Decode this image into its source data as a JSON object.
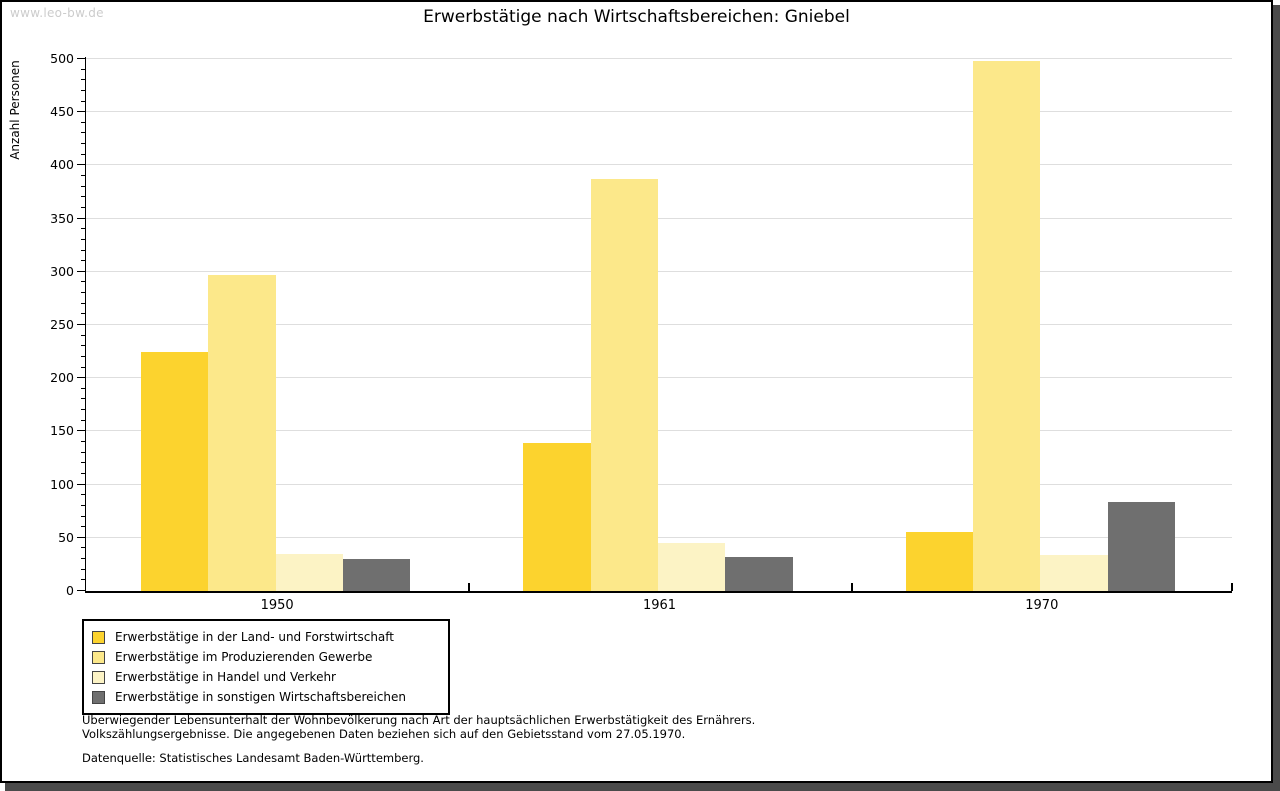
{
  "site": {
    "watermark": "www.leo-bw.de"
  },
  "title": "Erwerbstätige nach Wirtschaftsbereichen: Gniebel",
  "chart_data": {
    "type": "bar",
    "categories": [
      "1950",
      "1961",
      "1970"
    ],
    "series": [
      {
        "name": "Erwerbstätige in der Land- und Forstwirtschaft",
        "color": "#fcd32e",
        "values": [
          225,
          139,
          55
        ]
      },
      {
        "name": "Erwerbstätige im Produzierenden Gewerbe",
        "color": "#fce88a",
        "values": [
          297,
          387,
          498
        ]
      },
      {
        "name": "Erwerbstätige in Handel und Verkehr",
        "color": "#fcf3c5",
        "values": [
          35,
          45,
          34
        ]
      },
      {
        "name": "Erwerbstätige in sonstigen Wirtschaftsbereichen",
        "color": "#6f6f6f",
        "values": [
          30,
          32,
          84
        ]
      }
    ],
    "title": "Erwerbstätige nach Wirtschaftsbereichen: Gniebel",
    "xlabel": "",
    "ylabel": "Anzahl Personen",
    "ylim": [
      0,
      500
    ],
    "ytick_step": 50,
    "y_minor_step": 10,
    "grid": true,
    "legend_position": "bottom-left"
  },
  "footnotes": {
    "line1": "Überwiegender Lebensunterhalt der Wohnbevölkerung nach Art der hauptsächlichen Erwerbstätigkeit des Ernährers.",
    "line2": "Volkszählungsergebnisse. Die angegebenen Daten beziehen sich auf den Gebietsstand vom 27.05.1970.",
    "source": "Datenquelle: Statistisches Landesamt Baden-Württemberg."
  },
  "colors": {
    "grid": "#dedede",
    "axis": "#000000",
    "watermark": "#cccccc",
    "shadow": "#4a4a4a"
  }
}
